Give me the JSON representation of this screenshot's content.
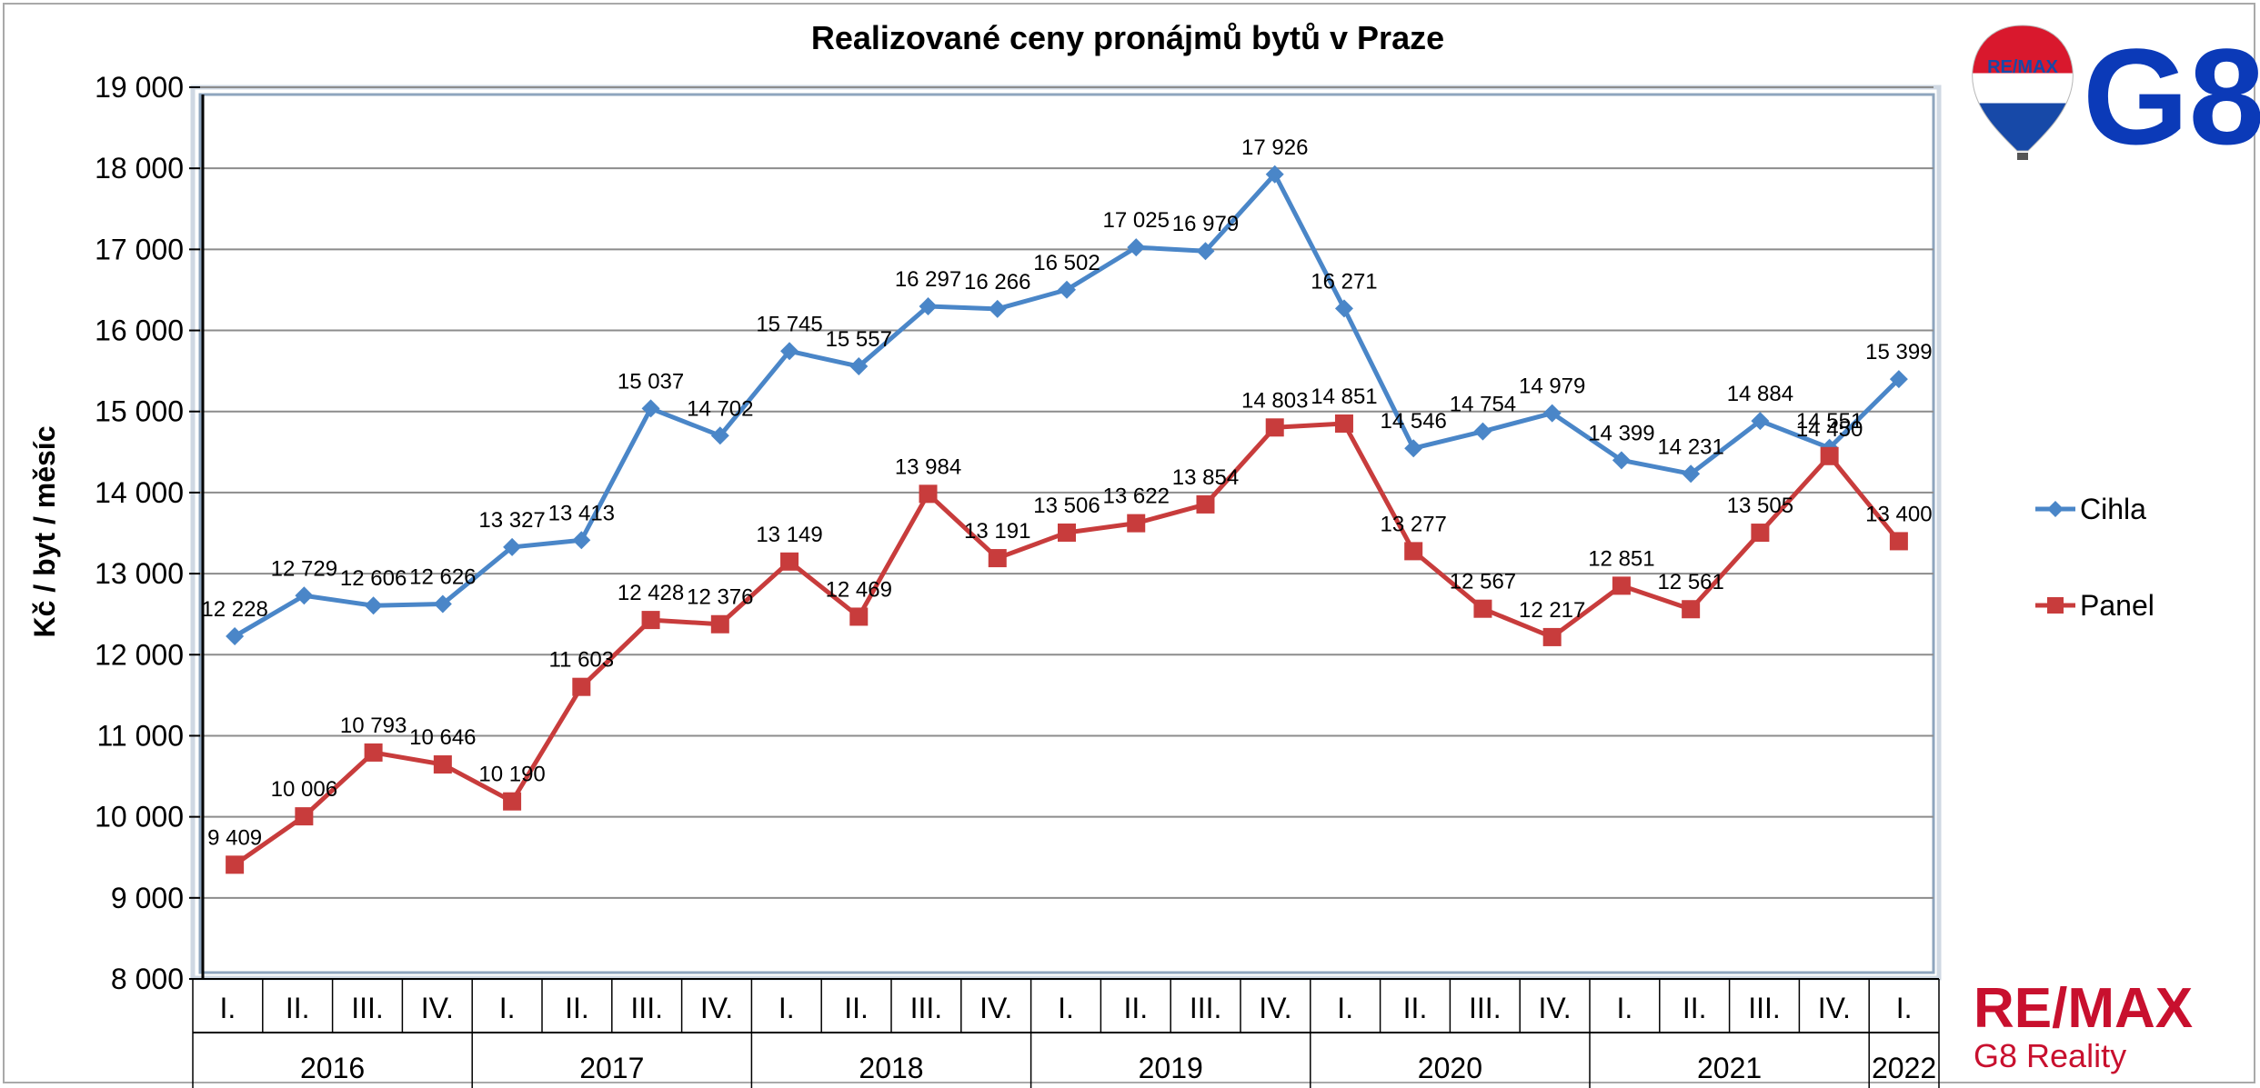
{
  "chart_data": {
    "type": "line",
    "title": "Realizované ceny pronájmů bytů v Praze",
    "ylabel": "Kč / byt / měsíc",
    "xlabel": "",
    "ylim": [
      8000,
      19000
    ],
    "yticks": [
      8000,
      9000,
      10000,
      11000,
      12000,
      13000,
      14000,
      15000,
      16000,
      17000,
      18000,
      19000
    ],
    "ytick_labels": [
      "8 000",
      "9 000",
      "10 000",
      "11 000",
      "12 000",
      "13 000",
      "14 000",
      "15 000",
      "16 000",
      "17 000",
      "18 000",
      "19 000"
    ],
    "grid": true,
    "legend_position": "right",
    "categories": [
      "I.",
      "II.",
      "III.",
      "IV.",
      "I.",
      "II.",
      "III.",
      "IV.",
      "I.",
      "II.",
      "III.",
      "IV.",
      "I.",
      "II.",
      "III.",
      "IV.",
      "I.",
      "II.",
      "III.",
      "IV.",
      "I.",
      "II.",
      "III.",
      "IV.",
      "I."
    ],
    "years": [
      {
        "label": "2016",
        "count": 4
      },
      {
        "label": "2017",
        "count": 4
      },
      {
        "label": "2018",
        "count": 4
      },
      {
        "label": "2019",
        "count": 4
      },
      {
        "label": "2020",
        "count": 4
      },
      {
        "label": "2021",
        "count": 4
      },
      {
        "label": "2022",
        "count": 1
      }
    ],
    "series": [
      {
        "name": "Cihla",
        "color": "#4a86c8",
        "marker": "diamond",
        "values": [
          12228,
          12729,
          12606,
          12626,
          13327,
          13413,
          15037,
          14702,
          15745,
          15557,
          16297,
          16266,
          16502,
          17025,
          16979,
          17926,
          16271,
          14546,
          14754,
          14979,
          14399,
          14231,
          14884,
          14551,
          15399
        ],
        "labels": [
          "12 228",
          "12 729",
          "12 606",
          "12 626",
          "13 327",
          "13 413",
          "15 037",
          "14 702",
          "15 745",
          "15 557",
          "16 297",
          "16 266",
          "16 502",
          "17 025",
          "16 979",
          "17 926",
          "16 271",
          "14 546",
          "14 754",
          "14 979",
          "14 399",
          "14 231",
          "14 884",
          "14 551",
          "15 399"
        ]
      },
      {
        "name": "Panel",
        "color": "#c83c3c",
        "marker": "square",
        "values": [
          9409,
          10006,
          10793,
          10646,
          10190,
          11603,
          12428,
          12376,
          13149,
          12469,
          13984,
          13191,
          13506,
          13622,
          13854,
          14803,
          14851,
          13277,
          12567,
          12217,
          12851,
          12561,
          13505,
          14450,
          13400
        ],
        "labels": [
          "9 409",
          "10 006",
          "10 793",
          "10 646",
          "10 190",
          "11 603",
          "12 428",
          "12 376",
          "13 149",
          "12 469",
          "13 984",
          "13 191",
          "13 506",
          "13 622",
          "13 854",
          "14 803",
          "14 851",
          "13 277",
          "12 567",
          "12 217",
          "12 851",
          "12 561",
          "13 505",
          "14 450",
          "13 400"
        ]
      }
    ]
  },
  "logos": {
    "balloon_text": "RE/MAX",
    "g8_text": "G8",
    "remax_word": "RE/MAX",
    "remax_sub": "G8 Reality",
    "brand_red": "#c8102e",
    "brand_blue": "#0b3ab8"
  }
}
